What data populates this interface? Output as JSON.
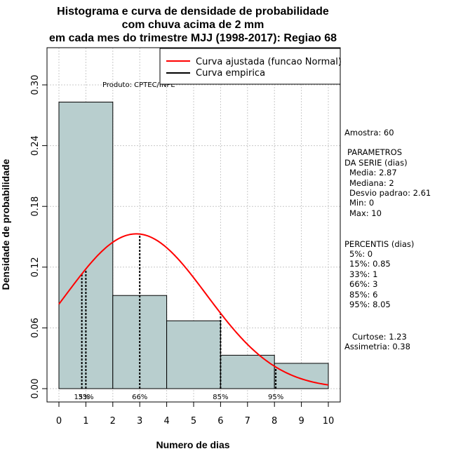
{
  "chart_data": {
    "type": "bar",
    "title_lines": [
      "Histograma e curva de densidade de probabilidade",
      "com chuva acima de 2 mm",
      "em cada mes do trimestre MJJ (1998-2017): Regiao 68"
    ],
    "xlabel": "Numero de dias",
    "ylabel": "Densidade de probabilidade",
    "xlim": [
      0,
      10
    ],
    "ylim": [
      0,
      0.3
    ],
    "x_ticks": [
      0,
      1,
      2,
      3,
      4,
      5,
      6,
      7,
      8,
      9,
      10
    ],
    "y_ticks": [
      0.0,
      0.06,
      0.12,
      0.18,
      0.24,
      0.3
    ],
    "y_tick_labels": [
      "0.00",
      "0.06",
      "0.12",
      "0.18",
      "0.24",
      "0.30"
    ],
    "grid": true,
    "bins": [
      {
        "from": 0,
        "to": 2,
        "density": 0.283
      },
      {
        "from": 2,
        "to": 4,
        "density": 0.092
      },
      {
        "from": 4,
        "to": 6,
        "density": 0.067
      },
      {
        "from": 6,
        "to": 8,
        "density": 0.033
      },
      {
        "from": 8,
        "to": 10,
        "density": 0.025
      }
    ],
    "bar_color": "#b8cece",
    "fitted_curve": {
      "label": "Curva ajustada (funcao Normal)",
      "mean": 2.87,
      "sd": 2.61,
      "color": "#ff0000"
    },
    "empirical_curve": {
      "label": "Curva empirica",
      "color": "#000000"
    },
    "percentile_markers": [
      {
        "label": "15%",
        "x": 0.85
      },
      {
        "label": "33%",
        "x": 1
      },
      {
        "label": "66%",
        "x": 3
      },
      {
        "label": "85%",
        "x": 6
      },
      {
        "label": "95%",
        "x": 8.05
      }
    ],
    "legend_position": "top-right",
    "product_label": "Produto: CPTEC/INPE"
  },
  "stats": {
    "lines": [
      "Amostra: 60",
      "PARAMETROS",
      "DA SERIE (dias)",
      "Media: 2.87",
      "Mediana: 2",
      "Desvio padrao: 2.61",
      "Min: 0",
      "Max: 10",
      "PERCENTIS (dias)",
      "5%: 0",
      "15%: 0.85",
      "33%: 1",
      "66%: 3",
      "85%: 6",
      "95%: 8.05",
      "Curtose: 1.23",
      "Assimetria: 0.38"
    ]
  }
}
